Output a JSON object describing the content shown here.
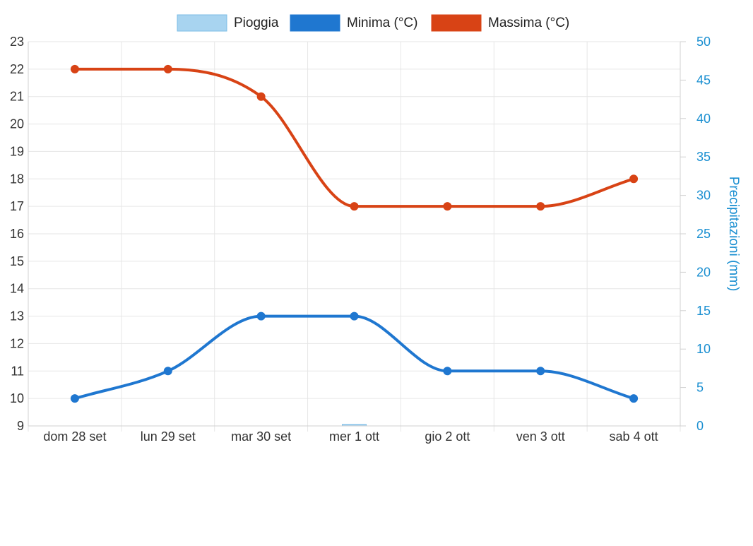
{
  "chart_data": {
    "type": "line",
    "categories": [
      "dom 28 set",
      "lun 29 set",
      "mar 30 set",
      "mer 1 ott",
      "gio 2 ott",
      "ven 3 ott",
      "sab 4 ott"
    ],
    "series": [
      {
        "name": "Pioggia",
        "kind": "bar",
        "axis": "right",
        "values": [
          0,
          0,
          0,
          0.2,
          0,
          0,
          0
        ],
        "color": "#a8d4f0",
        "border": "#7bbde6"
      },
      {
        "name": "Minima (°C)",
        "kind": "line",
        "axis": "left",
        "values": [
          10,
          11,
          13,
          13,
          11,
          11,
          10
        ],
        "color": "#1f77d0"
      },
      {
        "name": "Massima (°C)",
        "kind": "line",
        "axis": "left",
        "values": [
          22,
          22,
          21,
          17,
          17,
          17,
          18
        ],
        "color": "#d84315"
      }
    ],
    "y_left": {
      "min": 9,
      "max": 23,
      "ticks": [
        9,
        10,
        11,
        12,
        13,
        14,
        15,
        16,
        17,
        18,
        19,
        20,
        21,
        22,
        23
      ]
    },
    "y_right": {
      "min": 0,
      "max": 50,
      "ticks": [
        0,
        5,
        10,
        15,
        20,
        25,
        30,
        35,
        40,
        45,
        50
      ],
      "label": "Precipitazioni (mm)",
      "color": "#1a8fd1"
    },
    "grid": true,
    "legend": "top"
  }
}
